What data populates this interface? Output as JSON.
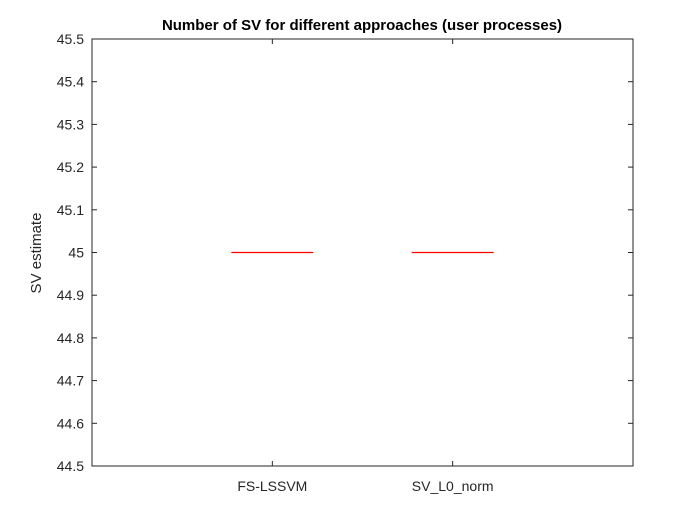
{
  "chart_data": {
    "type": "box",
    "title": "Number of SV for different approaches (user processes)",
    "xlabel": "",
    "ylabel": "SV estimate",
    "categories": [
      "FS-LSSVM",
      "SV_L0_norm"
    ],
    "values": [
      45,
      45
    ],
    "ylim": [
      44.5,
      45.5
    ],
    "yticks": [
      "44.5",
      "44.6",
      "44.7",
      "44.8",
      "44.9",
      "45",
      "45.1",
      "45.2",
      "45.3",
      "45.4",
      "45.5"
    ],
    "grid": false,
    "median_color": "#ff0000"
  }
}
